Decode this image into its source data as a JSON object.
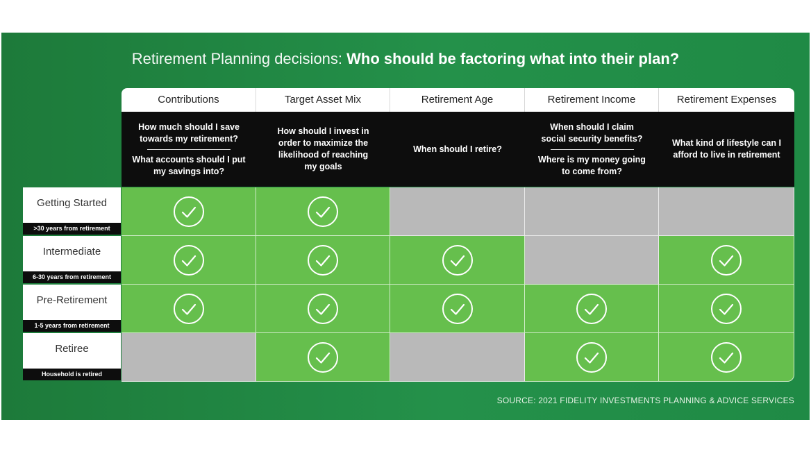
{
  "title": {
    "light": "Retirement Planning decisions: ",
    "bold": "Who should be factoring what into their plan?"
  },
  "columns": [
    {
      "label": "Contributions",
      "questions": [
        "How much should I save towards my retirement?",
        "What accounts should I put my savings into?"
      ]
    },
    {
      "label": "Target Asset Mix",
      "questions": [
        "How should I invest in order to maximize the likelihood of reaching my goals"
      ]
    },
    {
      "label": "Retirement Age",
      "questions": [
        "When should I retire?"
      ]
    },
    {
      "label": "Retirement Income",
      "questions": [
        "When should I claim social security benefits?",
        "Where is my money going to come from?"
      ]
    },
    {
      "label": "Retirement Expenses",
      "questions": [
        "What kind of lifestyle can I afford to live in retirement"
      ]
    }
  ],
  "rows": [
    {
      "name": "Getting Started",
      "sub": ">30 years from retirement",
      "checks": [
        true,
        true,
        false,
        false,
        false
      ]
    },
    {
      "name": "Intermediate",
      "sub": "6-30 years from retirement",
      "checks": [
        true,
        true,
        true,
        false,
        true
      ]
    },
    {
      "name": "Pre-Retirement",
      "sub": "1-5 years from retirement",
      "checks": [
        true,
        true,
        true,
        true,
        true
      ]
    },
    {
      "name": "Retiree",
      "sub": "Household is retired",
      "checks": [
        false,
        true,
        false,
        true,
        true
      ]
    }
  ],
  "source": "SOURCE: 2021 FIDELITY INVESTMENTS PLANNING & ADVICE SERVICES",
  "colors": {
    "panel": "#1f8a45",
    "check_on": "#66bf4d",
    "check_off": "#b9b9b9",
    "header_dark": "#0d0d0d"
  },
  "icons": {
    "check": "check-circle-icon"
  }
}
